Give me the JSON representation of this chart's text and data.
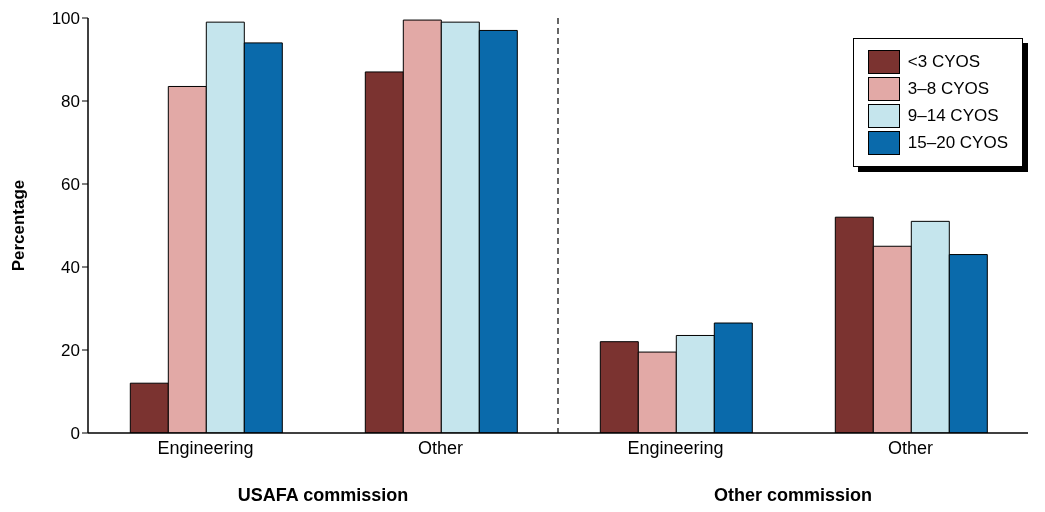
{
  "chart_data": [
    {
      "type": "bar",
      "ylabel": "Percentage",
      "xlabel": "USAFA commission",
      "categories": [
        "Engineering",
        "Other"
      ],
      "series": [
        {
          "color": "#7b3330",
          "values": [
            12,
            87
          ]
        },
        {
          "color": "#e2a9a6",
          "values": [
            83.5,
            99.5
          ]
        },
        {
          "color": "#c5e5ed",
          "values": [
            99,
            99
          ]
        },
        {
          "color": "#0a6aab",
          "values": [
            94,
            97
          ]
        }
      ],
      "ylim": [
        0,
        100
      ],
      "yticks": [
        0,
        20,
        40,
        60,
        80,
        100
      ],
      "legend": false
    },
    {
      "type": "bar",
      "xlabel": "Other commission",
      "categories": [
        "Engineering",
        "Other"
      ],
      "series": [
        {
          "name": "<3 CYOS",
          "color": "#7b3330",
          "values": [
            22,
            52
          ]
        },
        {
          "name": "3–8 CYOS",
          "color": "#e2a9a6",
          "values": [
            19.5,
            45
          ]
        },
        {
          "name": "9–14 CYOS",
          "color": "#c5e5ed",
          "values": [
            23.5,
            51
          ]
        },
        {
          "name": "15–20 CYOS",
          "color": "#0a6aab",
          "values": [
            26.5,
            43
          ]
        }
      ],
      "ylim": [
        0,
        100
      ],
      "yticks": [
        0,
        20,
        40,
        60,
        80,
        100
      ],
      "tick_labels": "x",
      "legend": "top right"
    }
  ]
}
